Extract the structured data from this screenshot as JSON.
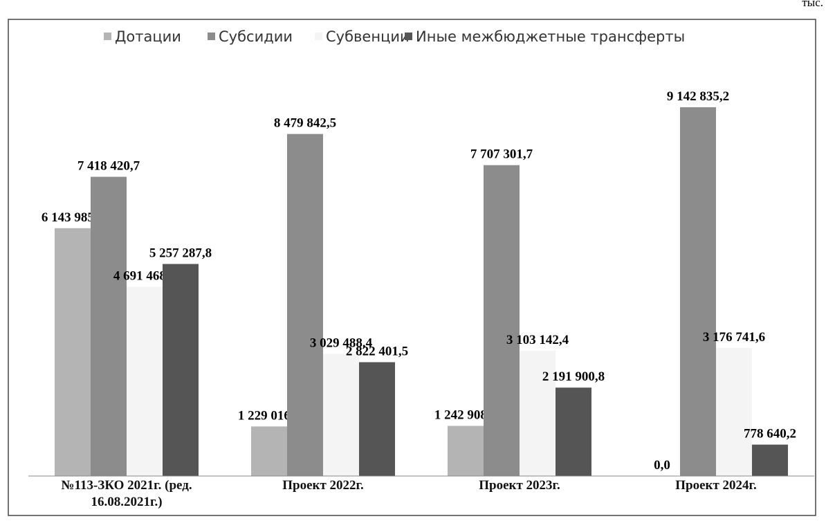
{
  "chart_data": {
    "type": "bar",
    "unit": "тыс.",
    "categories": [
      "№113-ЗКО 2021г. (ред. 16.08.2021г.)",
      "Проект 2022г.",
      "Проект 2023г.",
      "Проект 2024г."
    ],
    "series": [
      {
        "name": "Дотации",
        "color": "#b4b4b4",
        "values": [
          6143985.2,
          1229016.0,
          1242908.9,
          0.0
        ],
        "value_labels": [
          "6 143 985,2",
          "1 229 016,0",
          "1 242 908,9",
          "0,0"
        ]
      },
      {
        "name": "Субсидии",
        "color": "#8c8c8c",
        "values": [
          7418420.7,
          8479842.5,
          7707301.7,
          9142835.2
        ],
        "value_labels": [
          "7 418 420,7",
          "8 479 842,5",
          "7 707 301,7",
          "9 142 835,2"
        ]
      },
      {
        "name": "Субвенции",
        "color": "#f4f4f4",
        "values": [
          4691468.9,
          3029488.4,
          3103142.4,
          3176741.6
        ],
        "value_labels": [
          "4 691 468,9",
          "3 029 488,4",
          "3 103 142,4",
          "3 176 741,6"
        ]
      },
      {
        "name": "Иные межбюджетные трансферты",
        "color": "#555555",
        "values": [
          5257287.8,
          2822401.5,
          2191900.8,
          778640.2
        ],
        "value_labels": [
          "5 257 287,8",
          "2 822 401,5",
          "2 191 900,8",
          "778 640,2"
        ]
      }
    ],
    "legend": "top"
  }
}
